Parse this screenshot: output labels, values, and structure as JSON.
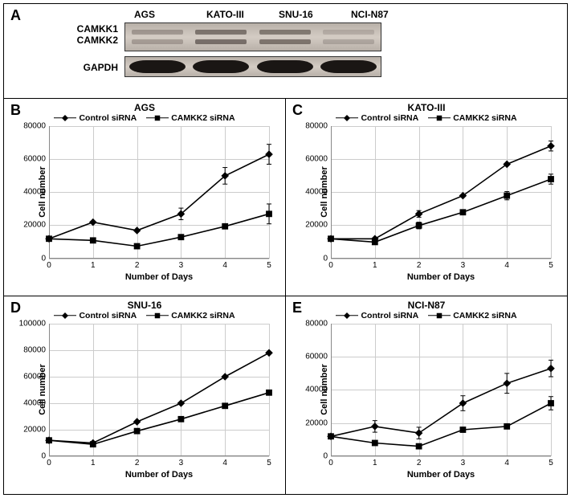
{
  "panel_a": {
    "label": "A",
    "cell_lines": [
      "AGS",
      "KATO-III",
      "SNU-16",
      "NCI-N87"
    ],
    "row_labels": [
      "CAMKK1",
      "CAMKK2"
    ],
    "gapdh_label": "GAPDH",
    "bands": {
      "camkk": [
        {
          "top_intensity": 0.45,
          "bottom_intensity": 0.4
        },
        {
          "top_intensity": 0.8,
          "bottom_intensity": 0.85
        },
        {
          "top_intensity": 0.75,
          "bottom_intensity": 0.8
        },
        {
          "top_intensity": 0.25,
          "bottom_intensity": 0.3
        }
      ]
    }
  },
  "legend_labels": {
    "control": "Control siRNA",
    "camkk2": "CAMKK2 siRNA"
  },
  "axis_labels": {
    "x": "Number of Days",
    "y": "Cell number"
  },
  "colors": {
    "line": "#000000",
    "marker_fill": "#000000",
    "grid": "#cccccc",
    "axis": "#888888",
    "background": "#ffffff"
  },
  "marker_size": 6,
  "line_width": 1.6,
  "charts": {
    "B": {
      "label": "B",
      "title": "AGS",
      "ylim": [
        0,
        80000
      ],
      "ytick_step": 20000,
      "xlim": [
        0,
        5
      ],
      "xtick_step": 1,
      "series": {
        "control": {
          "marker": "diamond",
          "x": [
            0,
            1,
            2,
            3,
            4,
            5
          ],
          "y": [
            12000,
            22000,
            17000,
            27000,
            50000,
            63000
          ],
          "err": [
            0,
            0,
            0,
            3500,
            5000,
            6000
          ]
        },
        "camkk2": {
          "marker": "square",
          "x": [
            0,
            1,
            2,
            3,
            4,
            5
          ],
          "y": [
            12000,
            11000,
            7500,
            13000,
            19500,
            27000
          ],
          "err": [
            0,
            0,
            0,
            0,
            0,
            6000
          ]
        }
      }
    },
    "C": {
      "label": "C",
      "title": "KATO-III",
      "ylim": [
        0,
        80000
      ],
      "ytick_step": 20000,
      "xlim": [
        0,
        5
      ],
      "xtick_step": 1,
      "series": {
        "control": {
          "marker": "diamond",
          "x": [
            0,
            1,
            2,
            3,
            4,
            5
          ],
          "y": [
            12000,
            12000,
            27000,
            38000,
            57000,
            68000
          ],
          "err": [
            0,
            0,
            2000,
            0,
            0,
            3000
          ]
        },
        "camkk2": {
          "marker": "square",
          "x": [
            0,
            1,
            2,
            3,
            4,
            5
          ],
          "y": [
            12000,
            10000,
            20000,
            28000,
            38000,
            48000
          ],
          "err": [
            0,
            0,
            2000,
            0,
            2500,
            3000
          ]
        }
      }
    },
    "D": {
      "label": "D",
      "title": "SNU-16",
      "ylim": [
        0,
        100000
      ],
      "ytick_step": 20000,
      "xlim": [
        0,
        5
      ],
      "xtick_step": 1,
      "series": {
        "control": {
          "marker": "diamond",
          "x": [
            0,
            1,
            2,
            3,
            4,
            5
          ],
          "y": [
            12000,
            10000,
            26000,
            40000,
            60000,
            78000
          ],
          "err": [
            0,
            0,
            0,
            0,
            0,
            0
          ]
        },
        "camkk2": {
          "marker": "square",
          "x": [
            0,
            1,
            2,
            3,
            4,
            5
          ],
          "y": [
            12000,
            9000,
            19000,
            28000,
            38000,
            48000
          ],
          "err": [
            0,
            0,
            0,
            0,
            0,
            0
          ]
        }
      }
    },
    "E": {
      "label": "E",
      "title": "NCI-N87",
      "ylim": [
        0,
        80000
      ],
      "ytick_step": 20000,
      "xlim": [
        0,
        5
      ],
      "xtick_step": 1,
      "series": {
        "control": {
          "marker": "diamond",
          "x": [
            0,
            1,
            2,
            3,
            4,
            5
          ],
          "y": [
            12000,
            18000,
            14000,
            32000,
            44000,
            53000
          ],
          "err": [
            0,
            3500,
            3500,
            4500,
            6000,
            5000
          ]
        },
        "camkk2": {
          "marker": "square",
          "x": [
            0,
            1,
            2,
            3,
            4,
            5
          ],
          "y": [
            12000,
            8000,
            6000,
            16000,
            18000,
            32000
          ],
          "err": [
            0,
            0,
            0,
            0,
            0,
            4000
          ]
        }
      }
    }
  }
}
